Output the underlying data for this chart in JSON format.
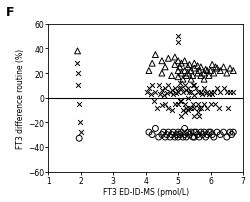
{
  "title": "F",
  "xlabel": "FT3 ED-ID-MS (pmol/L)",
  "ylabel": "FT3 difference routine (%)",
  "xlim": [
    1,
    7
  ],
  "ylim": [
    -60,
    60
  ],
  "xticks": [
    1,
    2,
    3,
    4,
    5,
    6,
    7
  ],
  "yticks": [
    -60,
    -40,
    -20,
    0,
    20,
    40,
    60
  ],
  "background_color": "#ffffff",
  "hline_y": 0,
  "triangles_x": [
    1.9,
    4.1,
    4.2,
    4.3,
    4.5,
    4.5,
    4.6,
    4.7,
    4.8,
    4.9,
    4.9,
    5.0,
    5.0,
    5.0,
    5.05,
    5.1,
    5.1,
    5.15,
    5.2,
    5.2,
    5.25,
    5.3,
    5.3,
    5.35,
    5.4,
    5.4,
    5.45,
    5.5,
    5.5,
    5.6,
    5.6,
    5.65,
    5.7,
    5.7,
    5.8,
    5.8,
    5.85,
    5.9,
    5.95,
    6.0,
    6.05,
    6.1,
    6.15,
    6.2,
    6.3,
    6.4,
    6.5,
    6.6,
    6.7
  ],
  "triangles_y": [
    38,
    22,
    28,
    35,
    30,
    20,
    25,
    32,
    18,
    27,
    33,
    22,
    30,
    17,
    25,
    20,
    28,
    15,
    22,
    30,
    18,
    25,
    20,
    27,
    15,
    22,
    18,
    24,
    28,
    20,
    26,
    22,
    18,
    25,
    20,
    15,
    23,
    22,
    18,
    22,
    27,
    20,
    25,
    24,
    22,
    25,
    20,
    24,
    22
  ],
  "crosses_x": [
    1.88,
    1.9,
    1.92,
    1.95,
    1.98,
    2.0,
    4.05,
    4.1,
    4.15,
    4.2,
    4.25,
    4.3,
    4.35,
    4.4,
    4.45,
    4.5,
    4.5,
    4.55,
    4.6,
    4.6,
    4.65,
    4.7,
    4.7,
    4.75,
    4.8,
    4.8,
    4.85,
    4.9,
    4.9,
    4.95,
    5.0,
    5.0,
    5.0,
    5.0,
    5.02,
    5.05,
    5.05,
    5.1,
    5.1,
    5.1,
    5.15,
    5.15,
    5.2,
    5.2,
    5.2,
    5.25,
    5.25,
    5.3,
    5.3,
    5.3,
    5.35,
    5.35,
    5.4,
    5.4,
    5.45,
    5.45,
    5.5,
    5.5,
    5.5,
    5.5,
    5.55,
    5.6,
    5.6,
    5.6,
    5.65,
    5.65,
    5.7,
    5.7,
    5.75,
    5.8,
    5.8,
    5.85,
    5.9,
    5.9,
    5.95,
    6.0,
    6.0,
    6.05,
    6.1,
    6.15,
    6.2,
    6.25,
    6.3,
    6.4,
    6.5,
    6.55,
    6.6,
    6.7
  ],
  "crosses_y": [
    28,
    20,
    10,
    -5,
    -20,
    -28,
    5,
    8,
    3,
    10,
    -3,
    5,
    -8,
    10,
    3,
    6,
    -6,
    2,
    8,
    -5,
    4,
    10,
    -8,
    5,
    6,
    -10,
    3,
    8,
    -5,
    4,
    50,
    45,
    5,
    -5,
    8,
    12,
    -3,
    8,
    -3,
    -15,
    5,
    -10,
    10,
    -5,
    -12,
    6,
    -8,
    8,
    0,
    -10,
    5,
    -8,
    5,
    -8,
    10,
    -5,
    10,
    2,
    -8,
    -15,
    8,
    -5,
    -12,
    5,
    -8,
    -15,
    5,
    -8,
    3,
    8,
    -5,
    4,
    5,
    -8,
    3,
    5,
    -5,
    3,
    5,
    -5,
    8,
    -8,
    5,
    8,
    5,
    -8,
    5,
    5
  ],
  "circles_x": [
    1.95,
    4.1,
    4.2,
    4.3,
    4.4,
    4.5,
    4.55,
    4.6,
    4.65,
    4.7,
    4.75,
    4.8,
    4.85,
    4.9,
    4.95,
    5.0,
    5.0,
    5.05,
    5.1,
    5.15,
    5.2,
    5.2,
    5.25,
    5.3,
    5.35,
    5.4,
    5.45,
    5.5,
    5.5,
    5.55,
    5.6,
    5.65,
    5.7,
    5.75,
    5.8,
    5.85,
    5.9,
    5.95,
    6.0,
    6.05,
    6.1,
    6.2,
    6.3,
    6.4,
    6.5,
    6.6,
    6.65,
    6.7
  ],
  "circles_y": [
    -33,
    -28,
    -30,
    -25,
    -32,
    -30,
    -28,
    -32,
    -30,
    -28,
    -32,
    -30,
    -28,
    -32,
    -30,
    -28,
    -32,
    -30,
    -28,
    -32,
    -25,
    -30,
    -32,
    -28,
    -30,
    -28,
    -32,
    -28,
    -32,
    -28,
    -30,
    -32,
    -28,
    -30,
    -28,
    -32,
    -30,
    -28,
    -28,
    -30,
    -32,
    -28,
    -30,
    -28,
    -32,
    -28,
    -30,
    -28
  ]
}
